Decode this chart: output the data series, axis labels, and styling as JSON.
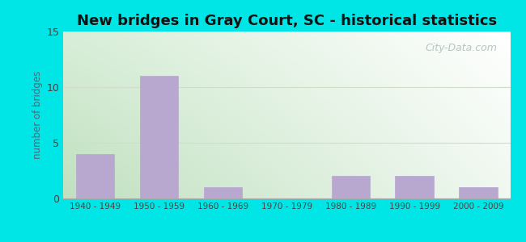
{
  "title": "New bridges in Gray Court, SC - historical statistics",
  "categories": [
    "1940 - 1949",
    "1950 - 1959",
    "1960 - 1969",
    "1970 - 1979",
    "1980 - 1989",
    "1990 - 1999",
    "2000 - 2009"
  ],
  "values": [
    4,
    11,
    1,
    0,
    2,
    2,
    1
  ],
  "bar_color": "#b8a8d0",
  "ylabel": "number of bridges",
  "ylim": [
    0,
    15
  ],
  "yticks": [
    0,
    5,
    10,
    15
  ],
  "background_outer": "#00e5e5",
  "bg_color_topleft": "#d8eed8",
  "bg_color_bottomright": "#f0f8f0",
  "bg_color_topright": "#ffffff",
  "title_fontsize": 13,
  "axis_label_color": "#4a6a7a",
  "tick_label_color": "#444444",
  "watermark_text": "City-Data.com",
  "watermark_color": "#b0c0b8",
  "grid_color": "#d0ddc8",
  "title_color": "#111111"
}
